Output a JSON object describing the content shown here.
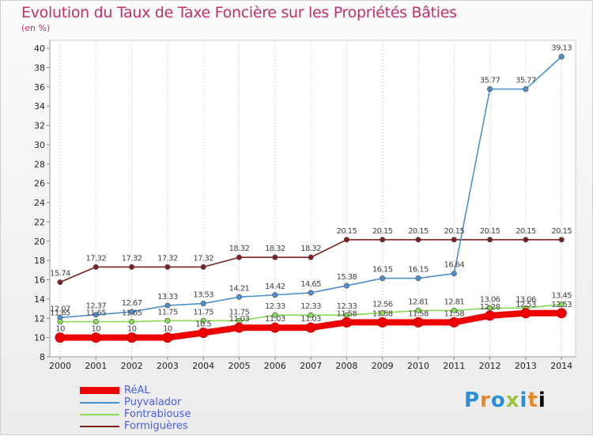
{
  "chart_data": {
    "type": "line",
    "title": "Evolution du Taux de Taxe Foncière sur les Propriétés Bâties",
    "ylabel": "(en %)",
    "xlabel": "",
    "categories": [
      "2000",
      "2001",
      "2002",
      "2003",
      "2004",
      "2005",
      "2006",
      "2007",
      "2008",
      "2009",
      "2010",
      "2011",
      "2012",
      "2013",
      "2014"
    ],
    "ylim": [
      8,
      40
    ],
    "yticks": [
      8,
      10,
      12,
      14,
      16,
      18,
      20,
      22,
      24,
      26,
      28,
      30,
      32,
      34,
      36,
      38,
      40
    ],
    "grid": "vertical",
    "series": [
      {
        "name": "RéAL",
        "color": "#ee0000",
        "values": [
          10,
          10,
          10,
          10,
          10.5,
          11.03,
          11.03,
          11.03,
          11.58,
          11.58,
          11.58,
          11.58,
          12.28,
          12.53,
          12.53
        ],
        "labels": [
          "10",
          "10",
          "10",
          "10",
          "10.5",
          "11.03",
          "11.03",
          "11.03",
          "11.58",
          "11.58",
          "11.58",
          "11.58",
          "12.28",
          "12.53",
          "12.53"
        ]
      },
      {
        "name": "Puyvalador",
        "color": "#4d90d0",
        "values": [
          12.07,
          12.37,
          12.67,
          13.33,
          13.53,
          14.21,
          14.42,
          14.65,
          15.38,
          16.15,
          16.15,
          16.64,
          35.77,
          35.77,
          39.13
        ],
        "labels": [
          "12.07",
          "12.37",
          "12.67",
          "13.33",
          "13.53",
          "14.21",
          "14.42",
          "14.65",
          "15.38",
          "16.15",
          "16.15",
          "16.64",
          "35.77",
          "35.77",
          "39.13"
        ]
      },
      {
        "name": "Fontrabiouse",
        "color": "#88dd55",
        "values": [
          11.65,
          11.65,
          11.65,
          11.75,
          11.75,
          11.75,
          12.33,
          12.33,
          12.33,
          12.56,
          12.81,
          12.81,
          13.06,
          13.06,
          13.45
        ],
        "labels": [
          "11.65",
          "11.65",
          "11.65",
          "11.75",
          "11.75",
          "11.75",
          "12.33",
          "12.33",
          "12.33",
          "12.56",
          "12.81",
          "12.81",
          "13.06",
          "13.06",
          "13.45"
        ]
      },
      {
        "name": "Formiguères",
        "color": "#7a2020",
        "values": [
          15.74,
          17.32,
          17.32,
          17.32,
          17.32,
          18.32,
          18.32,
          18.32,
          20.15,
          20.15,
          20.15,
          20.15,
          20.15,
          20.15,
          20.15
        ],
        "labels": [
          "15.74",
          "17.32",
          "17.32",
          "17.32",
          "17.32",
          "18.32",
          "18.32",
          "18.32",
          "20.15",
          "20.15",
          "20.15",
          "20.15",
          "20.15",
          "20.15",
          "20.15"
        ]
      }
    ],
    "legend": [
      {
        "label": "RéAL",
        "color": "#ee0000"
      },
      {
        "label": "Puyvalador",
        "color": "#4d90d0"
      },
      {
        "label": "Fontrabiouse",
        "color": "#88dd55"
      },
      {
        "label": "Formiguères",
        "color": "#7a2020"
      }
    ]
  },
  "logo": {
    "letters": [
      "P",
      "r",
      "o",
      "x",
      "i",
      "t",
      "i"
    ]
  }
}
